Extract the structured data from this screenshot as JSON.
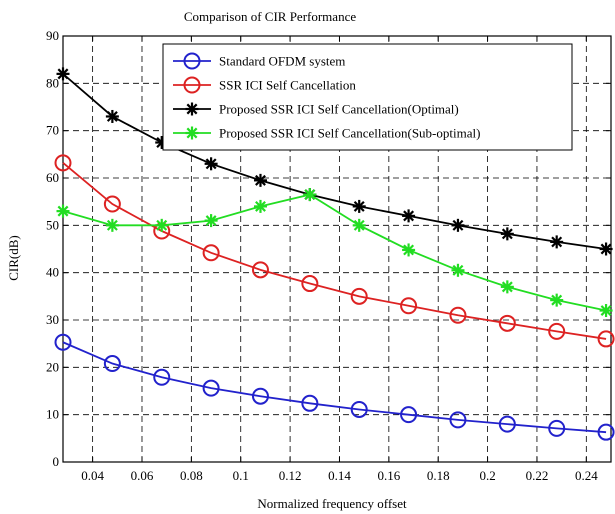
{
  "chart_data": {
    "type": "line",
    "title": "Comparison of CIR Performance",
    "xlabel": "Normalized frequency offset",
    "ylabel": "CIR(dB)",
    "xlim": [
      0.028,
      0.25
    ],
    "ylim": [
      0,
      90
    ],
    "xticks": [
      0.04,
      0.06,
      0.08,
      0.1,
      0.12,
      0.14,
      0.16,
      0.18,
      0.2,
      0.22,
      0.24
    ],
    "xtick_labels": [
      "0.04",
      "0.06",
      "0.08",
      "0.1",
      "0.12",
      "0.14",
      "0.16",
      "0.18",
      "0.2",
      "0.22",
      "0.24"
    ],
    "yticks": [
      0,
      10,
      20,
      30,
      40,
      50,
      60,
      70,
      80,
      90
    ],
    "ytick_labels": [
      "0",
      "10",
      "20",
      "30",
      "40",
      "50",
      "60",
      "70",
      "80",
      "90"
    ],
    "grid": true,
    "grid_style": "dashed",
    "legend_position": "top-right",
    "x": [
      0.028,
      0.048,
      0.068,
      0.088,
      0.108,
      0.128,
      0.148,
      0.168,
      0.188,
      0.208,
      0.228,
      0.248
    ],
    "series": [
      {
        "name": "Standard OFDM system",
        "color": "#2222cc",
        "marker": "circle",
        "values": [
          25.3,
          20.8,
          17.9,
          15.6,
          13.9,
          12.4,
          11.1,
          10.0,
          8.9,
          8.0,
          7.1,
          6.3
        ]
      },
      {
        "name": "SSR ICI Self Cancellation",
        "color": "#dd2222",
        "marker": "circle",
        "values": [
          63.2,
          54.5,
          48.8,
          44.2,
          40.6,
          37.7,
          35.0,
          33.0,
          31.0,
          29.3,
          27.6,
          26.0
        ]
      },
      {
        "name": "Proposed SSR ICI Self Cancellation(Optimal)",
        "color": "#000000",
        "marker": "star",
        "values": [
          82.0,
          73.0,
          67.5,
          63.0,
          59.5,
          56.5,
          54.0,
          52.0,
          50.0,
          48.2,
          46.5,
          45.0
        ]
      },
      {
        "name": "Proposed SSR ICI Self Cancellation(Sub-optimal)",
        "color": "#22dd22",
        "marker": "star",
        "values": [
          53.0,
          50.0,
          50.0,
          51.0,
          54.0,
          56.5,
          50.0,
          44.8,
          40.5,
          37.0,
          34.2,
          32.0
        ]
      }
    ]
  }
}
